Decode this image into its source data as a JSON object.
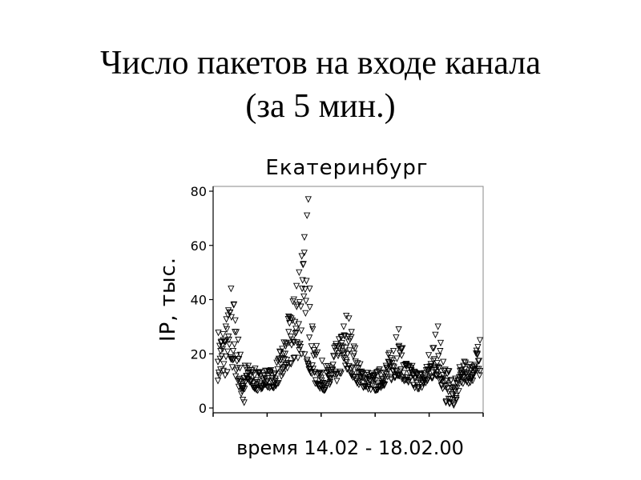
{
  "slide": {
    "title_line1": "Число пакетов на входе канала",
    "title_line2": "(за 5 мин.)"
  },
  "chart_data": {
    "type": "scatter",
    "title": "Екатеринбург",
    "xlabel": "время 14.02 - 18.02.00",
    "ylabel": "IP, тыс.",
    "ylim": [
      0,
      80
    ],
    "yticks": [
      0,
      20,
      40,
      60,
      80
    ],
    "xlim": [
      0,
      1
    ],
    "grid": false,
    "marker": "down-triangle",
    "marker_color": "#000000",
    "series": [
      {
        "points": [
          [
            0.0,
            17
          ],
          [
            0.01,
            21
          ],
          [
            0.02,
            25
          ],
          [
            0.03,
            30
          ],
          [
            0.04,
            36
          ],
          [
            0.05,
            44
          ],
          [
            0.06,
            38
          ],
          [
            0.07,
            28
          ],
          [
            0.08,
            18
          ],
          [
            0.09,
            8
          ],
          [
            0.095,
            3
          ],
          [
            0.1,
            2
          ],
          [
            0.12,
            14
          ],
          [
            0.14,
            12
          ],
          [
            0.16,
            9
          ],
          [
            0.18,
            11
          ],
          [
            0.2,
            13
          ],
          [
            0.22,
            10
          ],
          [
            0.24,
            16
          ],
          [
            0.25,
            20
          ],
          [
            0.26,
            24
          ],
          [
            0.27,
            28
          ],
          [
            0.28,
            33
          ],
          [
            0.29,
            40
          ],
          [
            0.3,
            45
          ],
          [
            0.31,
            50
          ],
          [
            0.32,
            56
          ],
          [
            0.33,
            63
          ],
          [
            0.34,
            71
          ],
          [
            0.345,
            77
          ],
          [
            0.35,
            44
          ],
          [
            0.36,
            30
          ],
          [
            0.37,
            20
          ],
          [
            0.39,
            13
          ],
          [
            0.41,
            9
          ],
          [
            0.43,
            14
          ],
          [
            0.45,
            21
          ],
          [
            0.47,
            26
          ],
          [
            0.48,
            30
          ],
          [
            0.49,
            34
          ],
          [
            0.5,
            33
          ],
          [
            0.51,
            28
          ],
          [
            0.52,
            20
          ],
          [
            0.55,
            13
          ],
          [
            0.58,
            10
          ],
          [
            0.61,
            9
          ],
          [
            0.63,
            13
          ],
          [
            0.65,
            17
          ],
          [
            0.67,
            21
          ],
          [
            0.68,
            26
          ],
          [
            0.69,
            29
          ],
          [
            0.7,
            22
          ],
          [
            0.72,
            16
          ],
          [
            0.75,
            11
          ],
          [
            0.78,
            10
          ],
          [
            0.8,
            14
          ],
          [
            0.82,
            22
          ],
          [
            0.83,
            27
          ],
          [
            0.84,
            30
          ],
          [
            0.85,
            24
          ],
          [
            0.86,
            17
          ],
          [
            0.87,
            2
          ],
          [
            0.88,
            6
          ],
          [
            0.9,
            1
          ],
          [
            0.91,
            3
          ],
          [
            0.93,
            14
          ],
          [
            0.95,
            12
          ],
          [
            0.97,
            15
          ],
          [
            0.99,
            20
          ],
          [
            1.0,
            25
          ]
        ],
        "band": [
          [
            0.0,
            10,
            30
          ],
          [
            0.03,
            12,
            35
          ],
          [
            0.06,
            14,
            42
          ],
          [
            0.09,
            4,
            18
          ],
          [
            0.12,
            9,
            16
          ],
          [
            0.15,
            6,
            14
          ],
          [
            0.18,
            8,
            15
          ],
          [
            0.21,
            7,
            14
          ],
          [
            0.24,
            10,
            22
          ],
          [
            0.27,
            14,
            34
          ],
          [
            0.3,
            18,
            48
          ],
          [
            0.33,
            20,
            60
          ],
          [
            0.36,
            10,
            30
          ],
          [
            0.39,
            7,
            18
          ],
          [
            0.42,
            6,
            16
          ],
          [
            0.45,
            9,
            24
          ],
          [
            0.48,
            14,
            30
          ],
          [
            0.51,
            12,
            28
          ],
          [
            0.54,
            8,
            17
          ],
          [
            0.57,
            7,
            14
          ],
          [
            0.6,
            6,
            13
          ],
          [
            0.63,
            8,
            16
          ],
          [
            0.66,
            10,
            22
          ],
          [
            0.69,
            12,
            26
          ],
          [
            0.72,
            9,
            18
          ],
          [
            0.75,
            7,
            15
          ],
          [
            0.78,
            7,
            14
          ],
          [
            0.81,
            10,
            22
          ],
          [
            0.84,
            12,
            28
          ],
          [
            0.87,
            2,
            16
          ],
          [
            0.9,
            1,
            10
          ],
          [
            0.93,
            9,
            17
          ],
          [
            0.96,
            9,
            18
          ],
          [
            1.0,
            12,
            24
          ]
        ]
      }
    ]
  }
}
